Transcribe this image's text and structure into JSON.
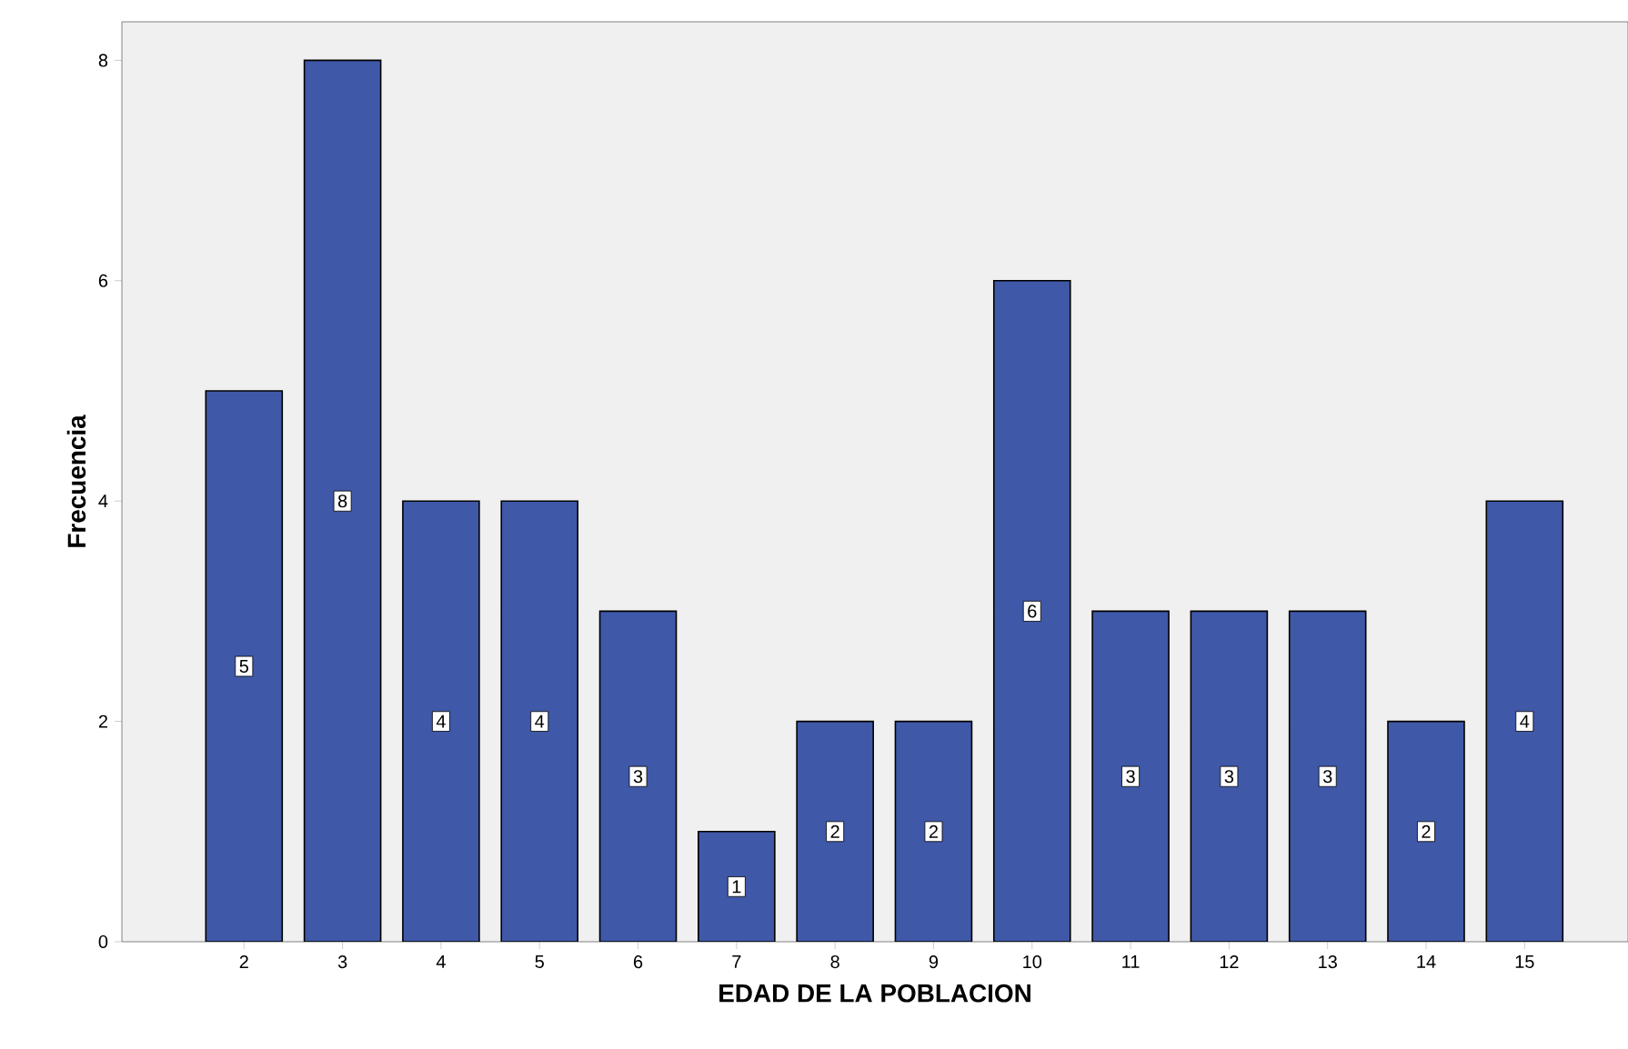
{
  "chart_data": {
    "type": "bar",
    "xlabel": "EDAD DE LA POBLACION",
    "ylabel": "Frecuencia",
    "categories": [
      "2",
      "3",
      "4",
      "5",
      "6",
      "7",
      "8",
      "9",
      "10",
      "11",
      "12",
      "13",
      "14",
      "15"
    ],
    "values": [
      5,
      8,
      4,
      4,
      3,
      1,
      2,
      2,
      6,
      3,
      3,
      3,
      2,
      4
    ],
    "color": "#3f58a8",
    "ylim": [
      0,
      8.35
    ],
    "yticks": [
      0,
      2,
      4,
      6,
      8
    ],
    "grid": false,
    "data_labels": true
  }
}
